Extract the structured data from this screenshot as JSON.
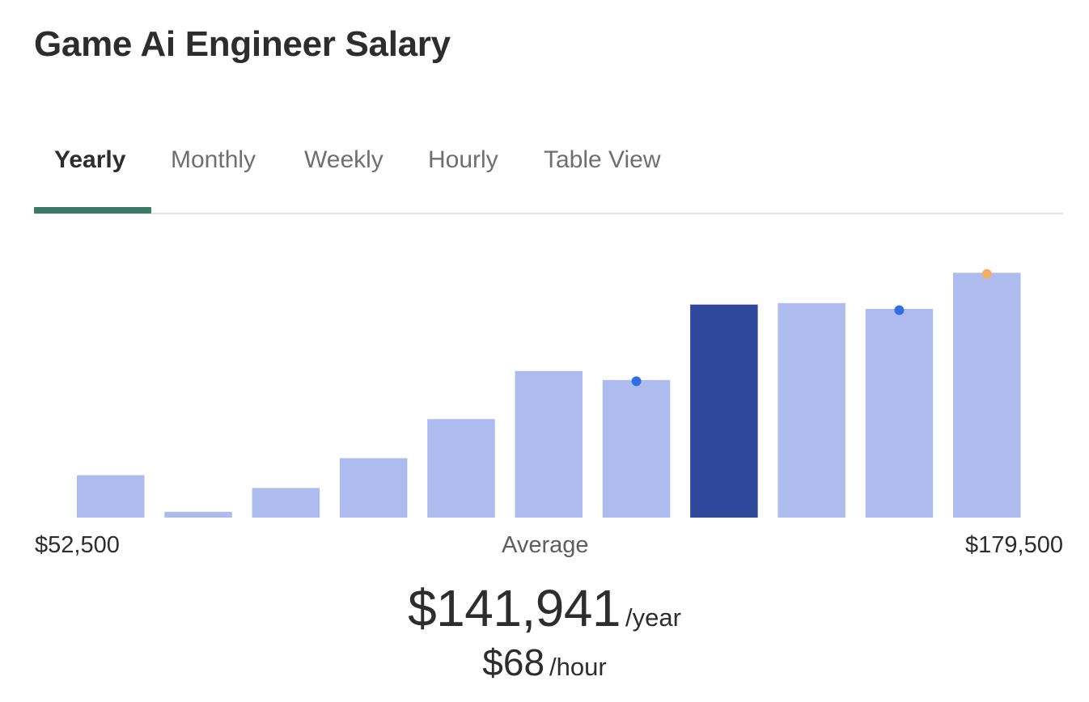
{
  "title": "Game Ai Engineer Salary",
  "tabs": [
    {
      "label": "Yearly",
      "active": true
    },
    {
      "label": "Monthly",
      "active": false
    },
    {
      "label": "Weekly",
      "active": false
    },
    {
      "label": "Hourly",
      "active": false
    },
    {
      "label": "Table View",
      "active": false
    }
  ],
  "axis": {
    "min_label": "$52,500",
    "center_label": "Average",
    "max_label": "$179,500"
  },
  "summary": {
    "yearly_amount": "$141,941",
    "yearly_unit": "/year",
    "hourly_amount": "$68",
    "hourly_unit": "/hour"
  },
  "colors": {
    "bar": "#aebbee",
    "bar_highlight": "#2f489c",
    "marker_blue": "#2f6fe0",
    "marker_orange": "#f3ad68",
    "tab_indicator": "#3c7a68"
  },
  "chart_data": {
    "type": "bar",
    "x_min_label": "$52,500",
    "x_max_label": "$179,500",
    "values": [
      17.5,
      2.4,
      12.2,
      24.5,
      40.6,
      60.4,
      56.7,
      87.8,
      88.4,
      86.0,
      100.9
    ],
    "highlight_index": 7,
    "markers": [
      {
        "bar": 6,
        "color": "blue"
      },
      {
        "bar": 9,
        "color": "blue"
      },
      {
        "bar": 10,
        "color": "orange"
      }
    ]
  }
}
